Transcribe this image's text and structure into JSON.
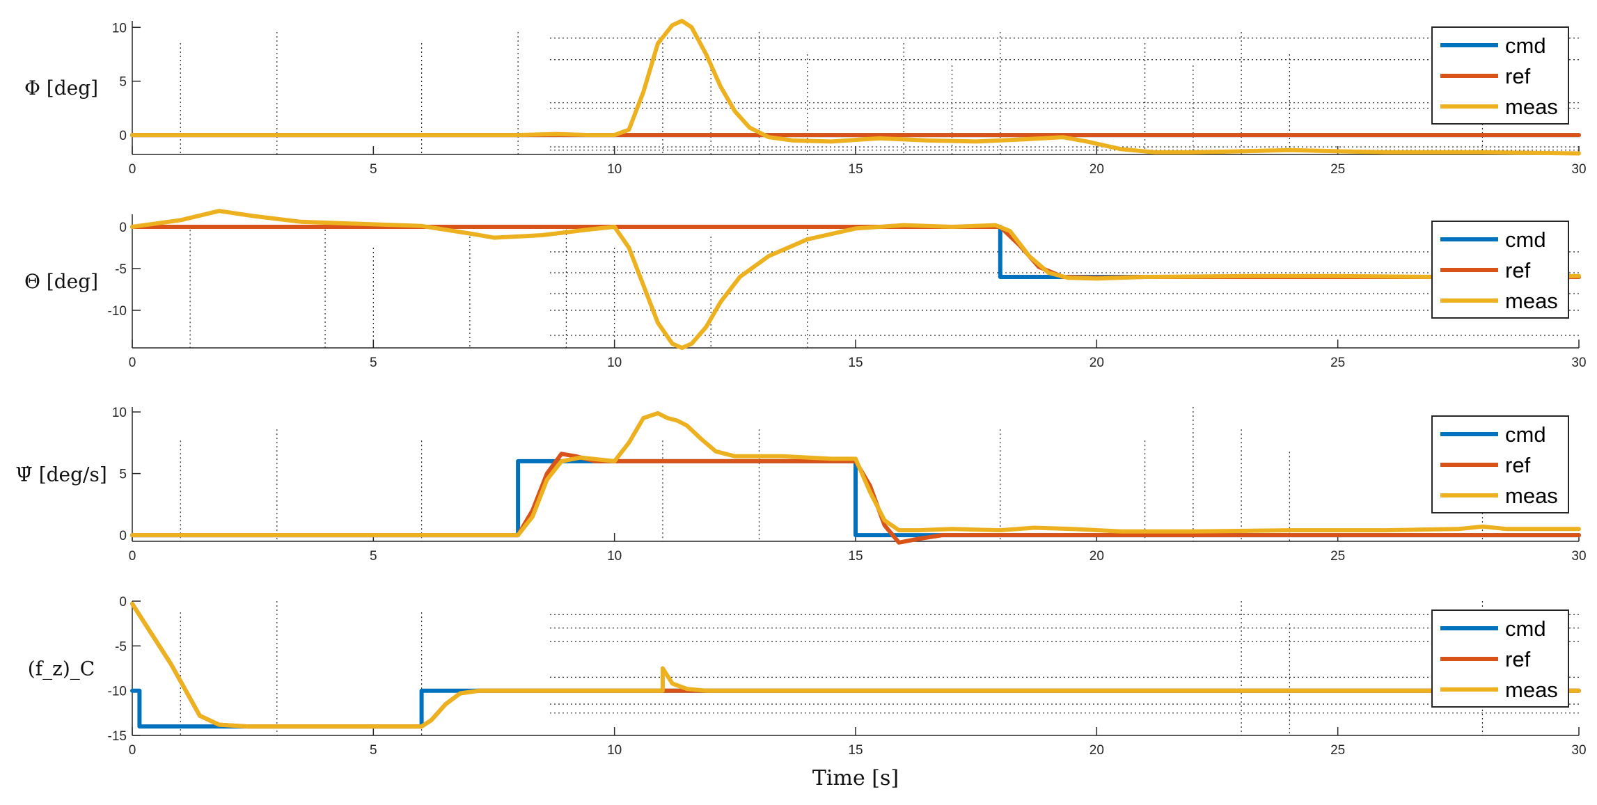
{
  "colors": {
    "cmd": "#0072BD",
    "ref": "#D95319",
    "meas": "#EDB120"
  },
  "xlabel": "Time [s]",
  "xlim": [
    0,
    30
  ],
  "xticks": [
    0,
    5,
    10,
    15,
    20,
    25,
    30
  ],
  "chart_data": [
    {
      "type": "line",
      "ylabel": "Φ [deg]",
      "ylim": [
        -1.8,
        10.6
      ],
      "yticks": [
        0,
        5,
        10
      ],
      "grid": "partial dotted",
      "legend": "top-right",
      "series": [
        {
          "name": "cmd",
          "x": [
            0,
            30
          ],
          "y": [
            0,
            0
          ]
        },
        {
          "name": "ref",
          "x": [
            0,
            30
          ],
          "y": [
            0,
            0
          ]
        },
        {
          "name": "meas",
          "x": [
            0,
            8,
            8.8,
            9.5,
            10,
            10.3,
            10.6,
            10.9,
            11.2,
            11.4,
            11.6,
            11.9,
            12.2,
            12.5,
            12.8,
            13.2,
            13.7,
            14.5,
            15.5,
            16.5,
            17.5,
            18.5,
            19.3,
            19.8,
            20.5,
            21.2,
            22,
            24,
            26,
            28,
            30
          ],
          "y": [
            0,
            0,
            0.1,
            0,
            0,
            0.5,
            4,
            8.5,
            10.2,
            10.6,
            10,
            7.5,
            4.5,
            2.2,
            0.7,
            -0.2,
            -0.5,
            -0.6,
            -0.3,
            -0.5,
            -0.6,
            -0.4,
            -0.2,
            -0.6,
            -1.3,
            -1.6,
            -1.6,
            -1.4,
            -1.6,
            -1.6,
            -1.7
          ]
        }
      ]
    },
    {
      "type": "line",
      "ylabel": "Θ [deg]",
      "ylim": [
        -14.5,
        1.5
      ],
      "yticks": [
        -10,
        -5,
        0
      ],
      "grid": "partial dotted",
      "legend": "top-right",
      "series": [
        {
          "name": "cmd",
          "x": [
            0,
            18,
            18,
            30
          ],
          "y": [
            0,
            0,
            -6,
            -6
          ]
        },
        {
          "name": "ref",
          "x": [
            0,
            18,
            18.4,
            18.8,
            19.3,
            20,
            21,
            30
          ],
          "y": [
            0,
            0,
            -2.2,
            -4.8,
            -6,
            -6.1,
            -6,
            -6
          ]
        },
        {
          "name": "meas",
          "x": [
            0,
            1,
            1.8,
            2.5,
            3.5,
            5,
            6,
            7,
            7.5,
            8.5,
            9.5,
            10,
            10.3,
            10.6,
            10.9,
            11.2,
            11.4,
            11.6,
            11.9,
            12.2,
            12.6,
            13.2,
            14,
            15,
            16,
            17,
            17.9,
            18.2,
            18.6,
            19,
            19.4,
            20,
            21,
            23,
            25,
            27,
            30
          ],
          "y": [
            0,
            0.8,
            1.9,
            1.3,
            0.6,
            0.3,
            0.1,
            -0.8,
            -1.3,
            -1,
            -0.3,
            0,
            -2.5,
            -7,
            -11.5,
            -14,
            -14.5,
            -14,
            -12,
            -9,
            -6,
            -3.5,
            -1.5,
            -0.2,
            0.2,
            0,
            0.2,
            -0.5,
            -3.5,
            -5.5,
            -6.1,
            -6.2,
            -6,
            -5.9,
            -5.9,
            -6,
            -5.9
          ]
        }
      ]
    },
    {
      "type": "line",
      "ylabel": "Ψ̇ [deg/s]",
      "ylim": [
        -0.5,
        10.4
      ],
      "yticks": [
        0,
        5,
        10
      ],
      "grid": "partial dotted",
      "legend": "top-right",
      "series": [
        {
          "name": "cmd",
          "x": [
            0,
            8,
            8,
            15,
            15,
            30
          ],
          "y": [
            0,
            0,
            6,
            6,
            0,
            0
          ]
        },
        {
          "name": "ref",
          "x": [
            0,
            8,
            8.3,
            8.6,
            8.9,
            9.2,
            9.6,
            10,
            15,
            15.3,
            15.6,
            15.9,
            16.3,
            16.8,
            17.5,
            30
          ],
          "y": [
            0,
            0,
            2,
            5,
            6.6,
            6.4,
            6,
            6,
            6,
            4,
            0.8,
            -0.6,
            -0.3,
            0,
            0,
            0
          ]
        },
        {
          "name": "meas",
          "x": [
            0,
            8,
            8.3,
            8.6,
            8.9,
            9.3,
            10,
            10.3,
            10.6,
            10.9,
            11.1,
            11.3,
            11.5,
            11.8,
            12.1,
            12.5,
            13.5,
            14.5,
            15,
            15.3,
            15.6,
            15.9,
            16.3,
            17,
            18,
            18.7,
            19.5,
            20.5,
            22,
            24,
            26,
            27.5,
            28,
            28.5,
            30
          ],
          "y": [
            0,
            0,
            1.5,
            4.5,
            6,
            6.3,
            6,
            7.5,
            9.5,
            9.9,
            9.5,
            9.3,
            8.9,
            7.8,
            6.8,
            6.4,
            6.4,
            6.2,
            6.2,
            3.5,
            1.2,
            0.4,
            0.4,
            0.5,
            0.4,
            0.6,
            0.5,
            0.3,
            0.3,
            0.4,
            0.4,
            0.5,
            0.7,
            0.5,
            0.5
          ]
        }
      ]
    },
    {
      "type": "line",
      "ylabel": "(f_z)_C",
      "ylim": [
        -15,
        0
      ],
      "yticks": [
        -15,
        -10,
        -5,
        0
      ],
      "grid": "partial dotted",
      "legend": "top-right",
      "series": [
        {
          "name": "cmd",
          "x": [
            0,
            0.15,
            0.15,
            6,
            6,
            30
          ],
          "y": [
            -10,
            -10,
            -14,
            -14,
            -10,
            -10
          ]
        },
        {
          "name": "ref",
          "x": [
            0,
            0.8,
            1.4,
            1.8,
            2.4,
            6,
            6.2,
            6.5,
            6.8,
            7.2,
            8,
            11,
            12,
            30
          ],
          "y": [
            -0.3,
            -7,
            -12.8,
            -13.8,
            -14,
            -14,
            -13.3,
            -11.5,
            -10.3,
            -10,
            -10,
            -10,
            -10,
            -10
          ]
        },
        {
          "name": "meas",
          "x": [
            0,
            0.8,
            1.4,
            1.8,
            2.4,
            6,
            6.2,
            6.5,
            6.8,
            7.2,
            8,
            11,
            11,
            11.2,
            11.5,
            11.9,
            12.2,
            30
          ],
          "y": [
            -0.3,
            -7,
            -12.8,
            -13.8,
            -14,
            -14,
            -13.3,
            -11.5,
            -10.3,
            -10,
            -10,
            -10,
            -7.5,
            -9.2,
            -9.8,
            -10,
            -10,
            -10
          ]
        }
      ]
    }
  ]
}
